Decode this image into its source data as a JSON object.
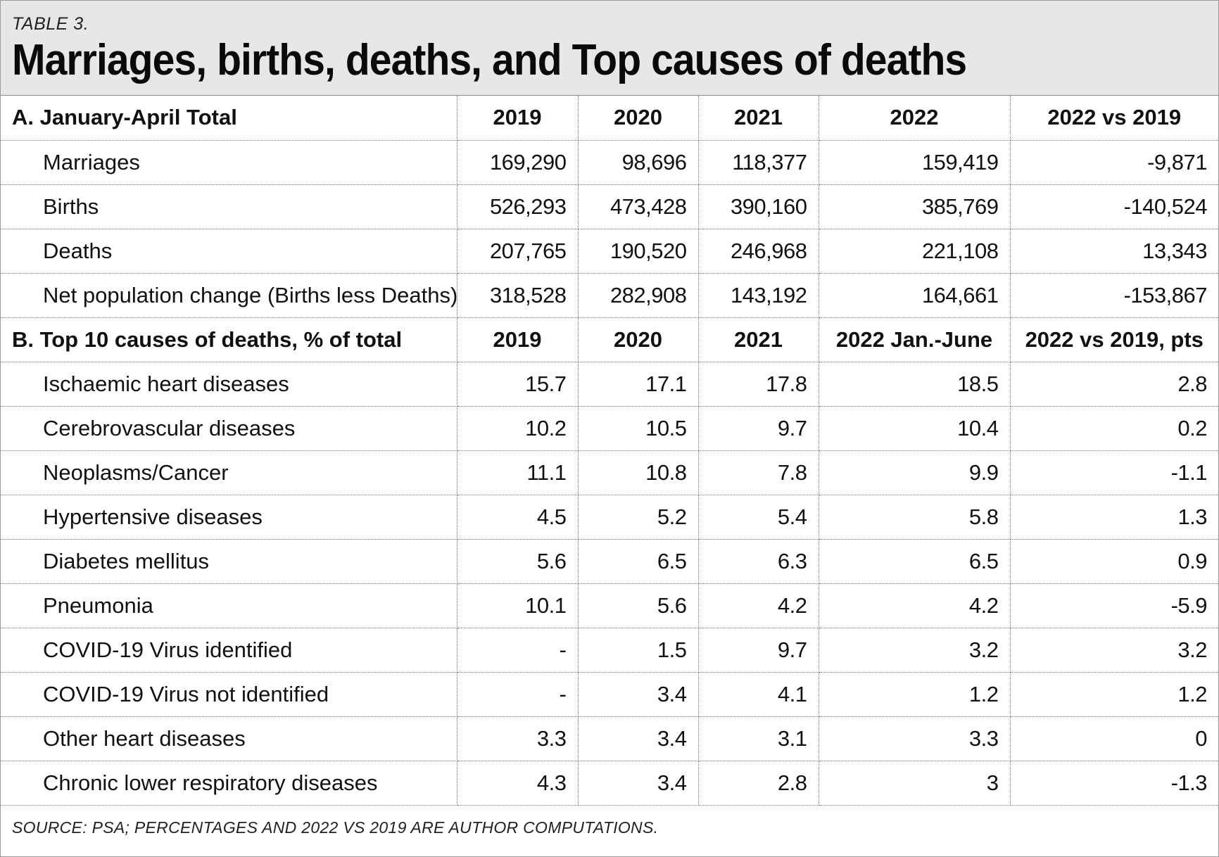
{
  "table_label": "TABLE 3.",
  "title": "Marriages, births, deaths, and Top causes of deaths",
  "section_a": {
    "header": [
      "A. January-April Total",
      "2019",
      "2020",
      "2021",
      "2022",
      "2022 vs 2019"
    ],
    "rows": [
      [
        "Marriages",
        "169,290",
        "98,696",
        "118,377",
        "159,419",
        "-9,871"
      ],
      [
        "Births",
        "526,293",
        "473,428",
        "390,160",
        "385,769",
        "-140,524"
      ],
      [
        "Deaths",
        "207,765",
        "190,520",
        "246,968",
        "221,108",
        "13,343"
      ],
      [
        "Net population change (Births less Deaths)",
        "318,528",
        "282,908",
        "143,192",
        "164,661",
        "-153,867"
      ]
    ]
  },
  "section_b": {
    "header": [
      "B. Top 10 causes of deaths, % of total",
      "2019",
      "2020",
      "2021",
      "2022 Jan.-June",
      "2022 vs 2019, pts"
    ],
    "rows": [
      [
        "Ischaemic heart diseases",
        "15.7",
        "17.1",
        "17.8",
        "18.5",
        "2.8"
      ],
      [
        "Cerebrovascular diseases",
        "10.2",
        "10.5",
        "9.7",
        "10.4",
        "0.2"
      ],
      [
        "Neoplasms/Cancer",
        "11.1",
        "10.8",
        "7.8",
        "9.9",
        "-1.1"
      ],
      [
        "Hypertensive diseases",
        "4.5",
        "5.2",
        "5.4",
        "5.8",
        "1.3"
      ],
      [
        "Diabetes mellitus",
        "5.6",
        "6.5",
        "6.3",
        "6.5",
        "0.9"
      ],
      [
        "Pneumonia",
        "10.1",
        "5.6",
        "4.2",
        "4.2",
        "-5.9"
      ],
      [
        "COVID-19 Virus identified",
        "-",
        "1.5",
        "9.7",
        "3.2",
        "3.2"
      ],
      [
        "COVID-19 Virus not identified",
        "-",
        "3.4",
        "4.1",
        "1.2",
        "1.2"
      ],
      [
        "Other heart diseases",
        "3.3",
        "3.4",
        "3.1",
        "3.3",
        "0"
      ],
      [
        "Chronic lower respiratory diseases",
        "4.3",
        "3.4",
        "2.8",
        "3",
        "-1.3"
      ]
    ]
  },
  "source": "SOURCE: PSA; PERCENTAGES AND 2022 VS 2019 ARE AUTHOR COMPUTATIONS.",
  "chart_data": {
    "type": "table",
    "title": "Marriages, births, deaths, and Top causes of deaths",
    "tables": [
      {
        "columns": [
          "A. January-April Total",
          "2019",
          "2020",
          "2021",
          "2022",
          "2022 vs 2019"
        ],
        "rows": [
          [
            "Marriages",
            169290,
            98696,
            118377,
            159419,
            -9871
          ],
          [
            "Births",
            526293,
            473428,
            390160,
            385769,
            -140524
          ],
          [
            "Deaths",
            207765,
            190520,
            246968,
            221108,
            13343
          ],
          [
            "Net population change (Births less Deaths)",
            318528,
            282908,
            143192,
            164661,
            -153867
          ]
        ]
      },
      {
        "columns": [
          "B. Top 10 causes of deaths, % of total",
          "2019",
          "2020",
          "2021",
          "2022 Jan.-June",
          "2022 vs 2019, pts"
        ],
        "rows": [
          [
            "Ischaemic heart diseases",
            15.7,
            17.1,
            17.8,
            18.5,
            2.8
          ],
          [
            "Cerebrovascular diseases",
            10.2,
            10.5,
            9.7,
            10.4,
            0.2
          ],
          [
            "Neoplasms/Cancer",
            11.1,
            10.8,
            7.8,
            9.9,
            -1.1
          ],
          [
            "Hypertensive diseases",
            4.5,
            5.2,
            5.4,
            5.8,
            1.3
          ],
          [
            "Diabetes mellitus",
            5.6,
            6.5,
            6.3,
            6.5,
            0.9
          ],
          [
            "Pneumonia",
            10.1,
            5.6,
            4.2,
            4.2,
            -5.9
          ],
          [
            "COVID-19 Virus identified",
            null,
            1.5,
            9.7,
            3.2,
            3.2
          ],
          [
            "COVID-19 Virus not identified",
            null,
            3.4,
            4.1,
            1.2,
            1.2
          ],
          [
            "Other heart diseases",
            3.3,
            3.4,
            3.1,
            3.3,
            0
          ],
          [
            "Chronic lower respiratory diseases",
            4.3,
            3.4,
            2.8,
            3,
            -1.3
          ]
        ]
      }
    ]
  }
}
